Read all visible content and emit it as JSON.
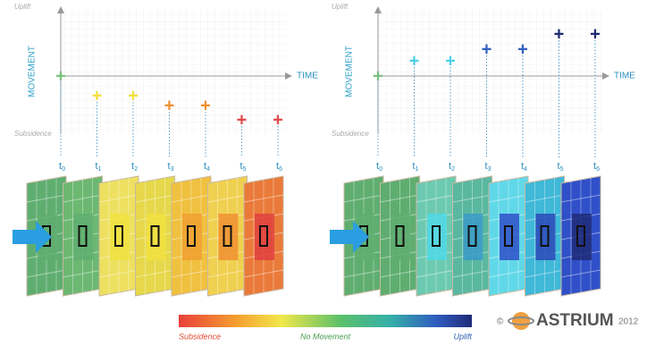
{
  "panels": [
    {
      "axis": {
        "top": "Uplift",
        "bottom": "Subsidence",
        "y_label": "MOVEMENT",
        "x_label": "TIME"
      },
      "time_symbol": "t",
      "steps": [
        "0",
        "1",
        "2",
        "3",
        "4",
        "5",
        "6"
      ]
    },
    {
      "axis": {
        "top": "Uplift",
        "bottom": "Subsidence",
        "y_label": "MOVEMENT",
        "x_label": "TIME"
      },
      "time_symbol": "t",
      "steps": [
        "0",
        "1",
        "2",
        "3",
        "4",
        "5",
        "6"
      ]
    }
  ],
  "legend": {
    "left": "Subsidence",
    "middle": "No Movement",
    "right": "Uplift"
  },
  "logo": {
    "copyright": "©",
    "name": "ASTRIUM",
    "year": "2012"
  }
}
